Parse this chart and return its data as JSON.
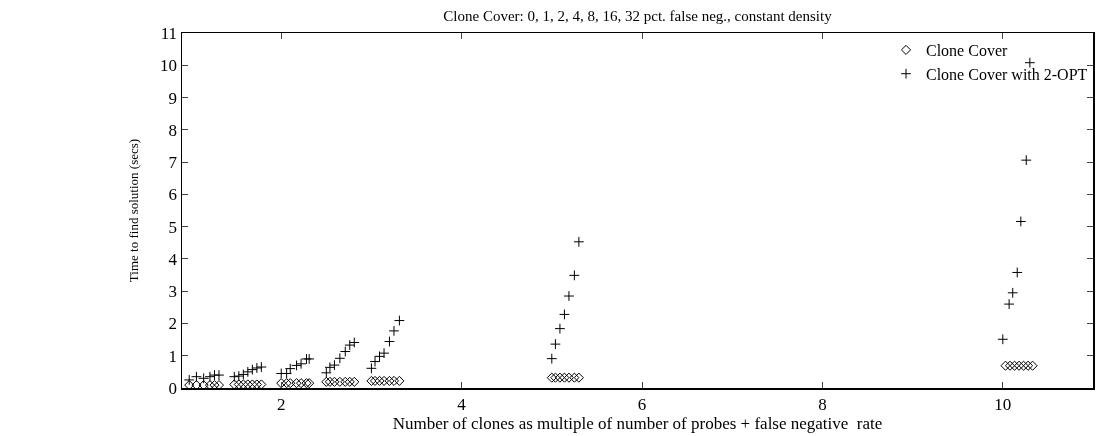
{
  "chart_data": {
    "type": "scatter",
    "title": "Clone Cover: 0, 1, 2, 4, 8, 16, 32 pct. false neg., constant density",
    "xlabel": "Number of clones as multiple of number of probes + false negative  rate",
    "ylabel": "Time to find solution (secs)",
    "xlim": [
      0.9,
      11
    ],
    "xticks": [
      2,
      4,
      6,
      8,
      10
    ],
    "ylim": [
      0,
      11
    ],
    "yticks": [
      0,
      1,
      2,
      3,
      4,
      5,
      6,
      7,
      8,
      9,
      10,
      11
    ],
    "grid": false,
    "legend": "top right",
    "series": [
      {
        "name": "Clone Cover",
        "color": "#000000",
        "marker": "diamond",
        "x": [
          0.98,
          1.06,
          1.14,
          1.21,
          1.26,
          1.31,
          1.48,
          1.53,
          1.58,
          1.63,
          1.68,
          1.73,
          1.78,
          2.0,
          2.06,
          2.1,
          2.17,
          2.22,
          2.28,
          2.31,
          2.5,
          2.54,
          2.59,
          2.65,
          2.71,
          2.76,
          2.81,
          3.0,
          3.04,
          3.09,
          3.14,
          3.2,
          3.25,
          3.31,
          5.0,
          5.04,
          5.09,
          5.14,
          5.19,
          5.25,
          5.3,
          10.03,
          10.08,
          10.13,
          10.18,
          10.23,
          10.28,
          10.33
        ],
        "values": [
          0.09,
          0.09,
          0.09,
          0.09,
          0.09,
          0.09,
          0.11,
          0.11,
          0.11,
          0.11,
          0.11,
          0.11,
          0.11,
          0.15,
          0.15,
          0.15,
          0.15,
          0.15,
          0.15,
          0.15,
          0.19,
          0.19,
          0.19,
          0.19,
          0.19,
          0.19,
          0.19,
          0.22,
          0.22,
          0.22,
          0.22,
          0.22,
          0.22,
          0.22,
          0.32,
          0.32,
          0.32,
          0.32,
          0.32,
          0.32,
          0.32,
          0.69,
          0.69,
          0.69,
          0.69,
          0.69,
          0.69,
          0.69
        ]
      },
      {
        "name": "Clone Cover with 2-OPT",
        "color": "#000000",
        "marker": "cross",
        "x": [
          0.98,
          1.06,
          1.14,
          1.21,
          1.26,
          1.31,
          1.48,
          1.53,
          1.58,
          1.63,
          1.68,
          1.73,
          1.78,
          2.0,
          2.06,
          2.1,
          2.17,
          2.22,
          2.28,
          2.31,
          2.5,
          2.54,
          2.59,
          2.65,
          2.71,
          2.76,
          2.81,
          3.0,
          3.04,
          3.09,
          3.14,
          3.2,
          3.25,
          3.31,
          5.0,
          5.04,
          5.09,
          5.14,
          5.19,
          5.25,
          5.3,
          10.0,
          10.07,
          10.11,
          10.16,
          10.2,
          10.26,
          10.3
        ],
        "values": [
          0.25,
          0.35,
          0.3,
          0.35,
          0.4,
          0.4,
          0.35,
          0.37,
          0.42,
          0.5,
          0.57,
          0.62,
          0.65,
          0.45,
          0.45,
          0.6,
          0.7,
          0.75,
          0.9,
          0.9,
          0.47,
          0.64,
          0.71,
          0.92,
          1.13,
          1.33,
          1.41,
          0.61,
          0.82,
          0.98,
          1.08,
          1.44,
          1.77,
          2.09,
          0.91,
          1.36,
          1.84,
          2.28,
          2.85,
          3.49,
          4.53,
          1.51,
          2.6,
          2.95,
          3.58,
          5.16,
          7.06,
          10.08
        ]
      }
    ]
  }
}
